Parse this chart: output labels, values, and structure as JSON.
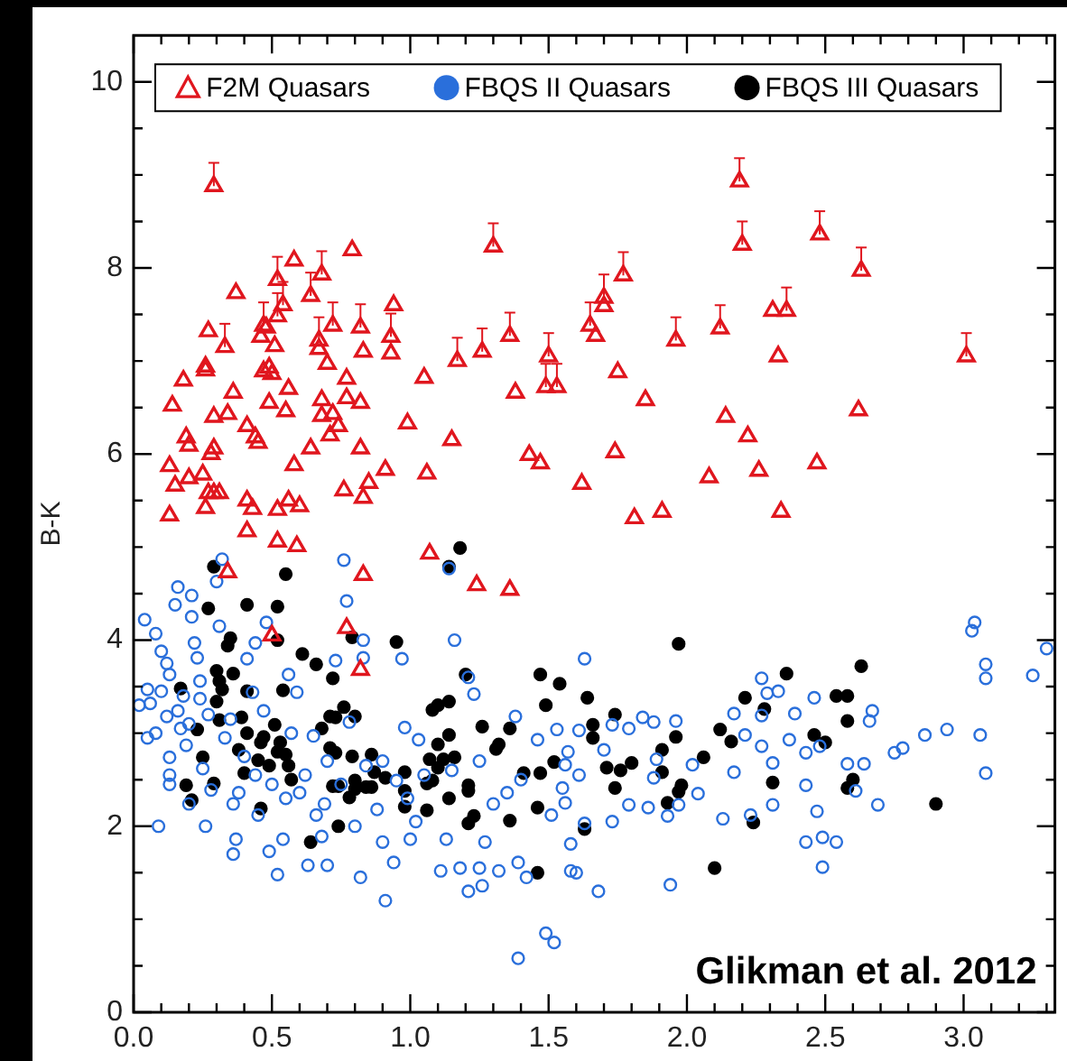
{
  "chart_data": {
    "type": "scatter",
    "ylabel": "B-K",
    "legend": "top",
    "grid": false,
    "annotations": [
      "Glikman et al. 2012"
    ],
    "xlim": [
      0,
      3.33
    ],
    "ylim": [
      0,
      10.5
    ],
    "xticks": [
      {
        "value": 0,
        "label": "0.0"
      },
      {
        "value": 0.1,
        "label": null
      },
      {
        "value": 0.2,
        "label": null
      },
      {
        "value": 0.3,
        "label": null
      },
      {
        "value": 0.4,
        "label": null
      },
      {
        "value": 0.5,
        "label": "0.5"
      },
      {
        "value": 0.6,
        "label": null
      },
      {
        "value": 0.7,
        "label": null
      },
      {
        "value": 0.8,
        "label": null
      },
      {
        "value": 0.9,
        "label": null
      },
      {
        "value": 1,
        "label": "1.0"
      },
      {
        "value": 1.1,
        "label": null
      },
      {
        "value": 1.2,
        "label": null
      },
      {
        "value": 1.3,
        "label": null
      },
      {
        "value": 1.4,
        "label": null
      },
      {
        "value": 1.5,
        "label": "1.5"
      },
      {
        "value": 1.6,
        "label": null
      },
      {
        "value": 1.7,
        "label": null
      },
      {
        "value": 1.8,
        "label": null
      },
      {
        "value": 1.9,
        "label": null
      },
      {
        "value": 2,
        "label": "2.0"
      },
      {
        "value": 2.1,
        "label": null
      },
      {
        "value": 2.2,
        "label": null
      },
      {
        "value": 2.3,
        "label": null
      },
      {
        "value": 2.4,
        "label": null
      },
      {
        "value": 2.5,
        "label": "2.5"
      },
      {
        "value": 2.6,
        "label": null
      },
      {
        "value": 2.7,
        "label": null
      },
      {
        "value": 2.8,
        "label": null
      },
      {
        "value": 2.9,
        "label": null
      },
      {
        "value": 3,
        "label": "3.0"
      },
      {
        "value": 3.1,
        "label": null
      },
      {
        "value": 3.2,
        "label": null
      },
      {
        "value": 3.3,
        "label": null
      }
    ],
    "yticks": [
      0,
      {
        "value": 0.5,
        "label": null
      },
      {
        "value": 1,
        "label": null
      },
      {
        "value": 1.5,
        "label": null
      },
      2,
      {
        "value": 2.5,
        "label": null
      },
      {
        "value": 3,
        "label": null
      },
      {
        "value": 3.5,
        "label": null
      },
      4,
      {
        "value": 4.5,
        "label": null
      },
      {
        "value": 5,
        "label": null
      },
      {
        "value": 5.5,
        "label": null
      },
      6,
      {
        "value": 6.5,
        "label": null
      },
      {
        "value": 7,
        "label": null
      },
      {
        "value": 7.5,
        "label": null
      },
      8,
      {
        "value": 8.5,
        "label": null
      },
      {
        "value": 9,
        "label": null
      },
      {
        "value": 9.5,
        "label": null
      },
      10
    ],
    "series": [
      {
        "name": "F2M Quasars",
        "color": "#e0161e",
        "marker": "triangle",
        "x": [
          0.29,
          1.3,
          0.79,
          0.58,
          0.52,
          0.68,
          0.64,
          0.37,
          0.54,
          0.94,
          0.52,
          0.47,
          0.48,
          0.72,
          0.82,
          0.93,
          0.27,
          0.33,
          0.46,
          0.51,
          0.67,
          0.67,
          0.83,
          0.93,
          1.17,
          1.26,
          1.36,
          1.5,
          1.49,
          1.53,
          0.7,
          0.26,
          0.26,
          0.18,
          0.47,
          0.5,
          0.49,
          0.36,
          0.56,
          0.77,
          1.05,
          1.38,
          0.14,
          0.29,
          0.34,
          0.41,
          0.49,
          0.55,
          0.68,
          0.68,
          0.77,
          0.82,
          0.72,
          0.74,
          0.71,
          0.99,
          1.15,
          0.19,
          0.2,
          0.44,
          0.45,
          0.29,
          0.28,
          0.64,
          0.82,
          1.43,
          0.58,
          0.91,
          1.06,
          0.15,
          0.2,
          0.25,
          0.27,
          0.29,
          0.31,
          0.41,
          0.43,
          0.52,
          0.56,
          0.6,
          0.76,
          0.85,
          0.83,
          0.13,
          0.26,
          0.41,
          0.52,
          0.59,
          1.07,
          0.34,
          0.83,
          0.13,
          1.24,
          1.36,
          0.5,
          0.77,
          0.82,
          2.19,
          2.2,
          2.48,
          2.63,
          1.77,
          1.7,
          1.7,
          1.65,
          1.67,
          1.96,
          2.12,
          2.31,
          2.36,
          3.01,
          2.33,
          1.75,
          1.85,
          2.14,
          2.62,
          2.22,
          1.74,
          1.62,
          1.47,
          2.08,
          2.26,
          2.47,
          1.81,
          1.91,
          2.34
        ],
        "values": [
          8.88,
          8.23,
          8.19,
          8.08,
          7.87,
          7.93,
          7.7,
          7.73,
          7.6,
          7.6,
          7.48,
          7.38,
          7.36,
          7.38,
          7.36,
          7.26,
          7.32,
          7.15,
          7.26,
          7.16,
          7.22,
          7.13,
          7.1,
          7.08,
          7.0,
          7.1,
          7.27,
          7.05,
          6.72,
          6.72,
          6.97,
          6.94,
          6.9,
          6.79,
          6.89,
          6.86,
          6.93,
          6.66,
          6.7,
          6.81,
          6.82,
          6.66,
          6.52,
          6.4,
          6.43,
          6.3,
          6.55,
          6.46,
          6.58,
          6.41,
          6.6,
          6.55,
          6.43,
          6.3,
          6.2,
          6.33,
          6.15,
          6.18,
          6.09,
          6.18,
          6.12,
          6.06,
          6.0,
          6.06,
          6.06,
          5.99,
          5.88,
          5.83,
          5.79,
          5.66,
          5.74,
          5.78,
          5.58,
          5.58,
          5.58,
          5.5,
          5.41,
          5.4,
          5.5,
          5.44,
          5.61,
          5.69,
          5.53,
          5.34,
          5.42,
          5.17,
          5.06,
          5.01,
          4.93,
          4.73,
          4.7,
          5.87,
          4.59,
          4.54,
          4.05,
          4.13,
          3.68,
          8.93,
          8.25,
          8.36,
          7.97,
          7.92,
          7.68,
          7.59,
          7.38,
          7.27,
          7.22,
          7.35,
          7.54,
          7.54,
          7.05,
          7.05,
          6.88,
          6.58,
          6.4,
          6.47,
          6.19,
          6.02,
          5.68,
          5.9,
          5.75,
          5.82,
          5.9,
          5.31,
          5.38,
          5.38
        ],
        "errors": [
          [
            8.88,
            9.13
          ],
          [
            8.23,
            8.48
          ],
          null,
          null,
          [
            7.87,
            8.12
          ],
          [
            7.93,
            8.18
          ],
          [
            7.7,
            7.95
          ],
          null,
          [
            7.6,
            7.85
          ],
          null,
          [
            7.48,
            7.73
          ],
          [
            7.38,
            7.63
          ],
          null,
          [
            7.38,
            7.63
          ],
          [
            7.36,
            7.61
          ],
          [
            7.26,
            7.51
          ],
          null,
          [
            7.15,
            7.4
          ],
          null,
          null,
          [
            7.22,
            7.47
          ],
          null,
          null,
          null,
          [
            7.0,
            7.25
          ],
          [
            7.1,
            7.35
          ],
          [
            7.27,
            7.52
          ],
          [
            7.05,
            7.3
          ],
          [
            6.72,
            6.97
          ],
          [
            6.72,
            6.97
          ],
          null,
          null,
          null,
          null,
          null,
          null,
          null,
          null,
          null,
          null,
          null,
          null,
          null,
          null,
          null,
          null,
          null,
          null,
          null,
          null,
          null,
          null,
          null,
          null,
          null,
          null,
          null,
          null,
          null,
          null,
          null,
          null,
          null,
          null,
          null,
          null,
          null,
          null,
          null,
          null,
          null,
          null,
          null,
          null,
          null,
          null,
          null,
          null,
          null,
          null,
          null,
          null,
          null,
          null,
          null,
          null,
          null,
          null,
          null,
          null,
          null,
          null,
          null,
          null,
          null,
          null,
          null,
          [
            8.93,
            9.18
          ],
          [
            8.25,
            8.5
          ],
          [
            8.36,
            8.61
          ],
          [
            7.97,
            8.22
          ],
          [
            7.92,
            8.17
          ],
          [
            7.68,
            7.93
          ],
          null,
          [
            7.38,
            7.63
          ],
          null,
          [
            7.22,
            7.47
          ],
          [
            7.35,
            7.6
          ],
          null,
          [
            7.54,
            7.79
          ],
          [
            7.05,
            7.3
          ],
          null,
          null,
          null,
          null,
          null,
          null,
          null,
          null,
          null,
          null,
          null,
          null,
          null,
          null,
          null
        ]
      },
      {
        "name": "FBQS II Quasars",
        "color": "#2a6fdb",
        "marker": "circle",
        "x": [
          0.04,
          0.09,
          0.08,
          0.05,
          0.06,
          0.08,
          0.1,
          0.12,
          0.13,
          0.12,
          0.13,
          0.13,
          0.13,
          0.16,
          0.15,
          0.16,
          0.17,
          0.19,
          0.2,
          0.21,
          0.21,
          0.22,
          0.23,
          0.24,
          0.24,
          0.25,
          0.26,
          0.28,
          0.3,
          0.31,
          0.32,
          0.36,
          0.37,
          0.36,
          0.38,
          0.41,
          0.44,
          0.43,
          0.47,
          0.45,
          0.48,
          0.52,
          0.49,
          0.54,
          0.56,
          0.57,
          0.59,
          0.6,
          0.63,
          0.65,
          0.66,
          0.68,
          0.69,
          0.7,
          0.73,
          0.76,
          0.77,
          0.78,
          0.8,
          0.82,
          0.83,
          0.83,
          0.84,
          0.88,
          0.9,
          0.91,
          0.94,
          0.95,
          0.97,
          0.98,
          0.99,
          1.0,
          1.02,
          1.03,
          1.11,
          1.13,
          1.14,
          1.16,
          1.18,
          1.21,
          1.21,
          1.23,
          1.26,
          1.25,
          1.27,
          1.3,
          1.32,
          1.35,
          1.38,
          1.39,
          1.42,
          1.46,
          1.39,
          1.49,
          1.52,
          1.51,
          1.57,
          1.58,
          1.63,
          1.53,
          1.61,
          1.56,
          1.61,
          1.55,
          1.56,
          1.63,
          1.58,
          1.6,
          1.68,
          1.7,
          1.73,
          1.79,
          1.84,
          1.88,
          1.96,
          1.89,
          1.88,
          1.79,
          1.86,
          1.73,
          1.93,
          1.94,
          2.02,
          2.04,
          1.97,
          2.13,
          2.17,
          2.17,
          2.21,
          2.27,
          2.29,
          2.33,
          2.27,
          2.27,
          2.31,
          2.31,
          2.23,
          2.37,
          2.39,
          2.43,
          2.46,
          2.48,
          2.43,
          2.47,
          2.43,
          2.49,
          2.54,
          2.49,
          2.58,
          2.61,
          2.64,
          2.67,
          2.66,
          2.69,
          2.75,
          2.78,
          2.86,
          2.94,
          3.06,
          3.08,
          3.03,
          3.04,
          3.08,
          3.08,
          3.25,
          3.3,
          0.02,
          0.05,
          0.1,
          0.18,
          0.2,
          0.27,
          0.33,
          0.35,
          0.4,
          0.44,
          0.5,
          0.55,
          0.62,
          0.7,
          0.75,
          0.9,
          1.05,
          1.15,
          1.25,
          1.4
        ],
        "values": [
          4.22,
          2.0,
          4.07,
          3.47,
          3.32,
          3.0,
          3.88,
          3.75,
          3.63,
          3.18,
          2.74,
          2.55,
          2.45,
          4.57,
          4.38,
          3.24,
          3.05,
          2.87,
          2.24,
          4.48,
          4.25,
          3.97,
          3.81,
          3.56,
          3.37,
          2.62,
          2.0,
          2.39,
          4.63,
          4.15,
          4.87,
          1.7,
          1.86,
          2.24,
          2.36,
          3.8,
          3.97,
          3.44,
          3.24,
          2.12,
          4.19,
          1.48,
          1.73,
          1.86,
          3.63,
          3.0,
          3.44,
          2.36,
          1.58,
          2.97,
          2.12,
          1.89,
          2.24,
          1.58,
          3.78,
          4.86,
          4.42,
          3.12,
          2.0,
          1.45,
          3.81,
          4.0,
          2.65,
          2.18,
          1.83,
          1.2,
          1.61,
          2.49,
          3.8,
          3.06,
          2.3,
          1.86,
          2.05,
          2.93,
          1.52,
          1.86,
          4.77,
          4.0,
          1.55,
          3.6,
          1.3,
          3.42,
          1.36,
          1.55,
          1.83,
          2.24,
          1.52,
          2.36,
          3.18,
          1.61,
          1.45,
          2.93,
          0.58,
          0.85,
          0.75,
          2.12,
          2.8,
          1.52,
          3.8,
          3.04,
          3.03,
          2.66,
          2.55,
          2.41,
          2.25,
          2.03,
          1.81,
          1.5,
          1.3,
          2.82,
          3.09,
          3.05,
          3.17,
          3.12,
          3.13,
          2.72,
          2.52,
          2.23,
          2.2,
          2.05,
          2.11,
          1.37,
          2.66,
          2.35,
          2.23,
          2.08,
          2.58,
          3.21,
          2.98,
          3.59,
          3.43,
          3.45,
          3.19,
          2.86,
          2.68,
          2.23,
          2.12,
          2.93,
          3.21,
          2.79,
          3.38,
          2.86,
          2.44,
          2.16,
          1.83,
          1.88,
          1.83,
          1.56,
          2.67,
          2.38,
          2.67,
          3.24,
          3.13,
          2.23,
          2.79,
          2.84,
          2.98,
          3.04,
          2.98,
          2.57,
          4.1,
          4.19,
          3.74,
          3.59,
          3.62,
          3.91,
          3.3,
          2.95,
          3.45,
          3.4,
          3.1,
          3.2,
          2.95,
          3.15,
          2.75,
          2.55,
          2.45,
          2.3,
          2.55,
          2.7,
          2.45,
          2.7,
          2.55,
          2.6,
          2.7,
          2.5
        ]
      },
      {
        "name": "FBQS III Quasars",
        "color": "#000000",
        "marker": "circle",
        "x": [
          0.29,
          0.55,
          1.18,
          1.14,
          0.27,
          0.41,
          0.52,
          0.35,
          0.34,
          0.52,
          0.79,
          0.95,
          0.61,
          0.66,
          0.72,
          0.3,
          0.31,
          0.36,
          0.17,
          0.32,
          0.41,
          0.54,
          0.3,
          0.23,
          0.31,
          0.39,
          0.41,
          0.47,
          0.51,
          0.46,
          0.53,
          0.55,
          0.52,
          0.38,
          0.25,
          0.45,
          0.49,
          0.56,
          0.57,
          0.4,
          0.68,
          0.71,
          0.73,
          0.76,
          0.8,
          0.71,
          0.73,
          0.79,
          0.86,
          0.87,
          0.91,
          0.98,
          0.8,
          0.8,
          0.84,
          0.86,
          0.72,
          0.74,
          0.78,
          0.98,
          0.98,
          1.06,
          0.74,
          0.64,
          0.46,
          0.21,
          0.19,
          0.29,
          1.07,
          1.1,
          1.12,
          1.08,
          1.1,
          1.14,
          1.1,
          1.14,
          1.16,
          1.06,
          1.08,
          1.14,
          1.21,
          1.21,
          1.21,
          1.23,
          1.2,
          1.26,
          1.31,
          1.32,
          1.36,
          1.36,
          1.41,
          1.47,
          1.47,
          1.54,
          1.49,
          1.52,
          1.46,
          1.46,
          1.97,
          1.64,
          1.66,
          1.66,
          1.74,
          1.71,
          1.76,
          1.8,
          1.74,
          1.63,
          1.96,
          1.91,
          1.91,
          1.98,
          1.97,
          1.93,
          2.06,
          2.12,
          2.16,
          2.21,
          2.28,
          2.36,
          2.24,
          2.31,
          2.1,
          2.46,
          2.5,
          2.54,
          2.58,
          2.58,
          2.63,
          2.6,
          2.58,
          2.9
        ],
        "values": [
          4.79,
          4.71,
          4.99,
          4.79,
          4.34,
          4.38,
          4.36,
          4.02,
          3.94,
          4.0,
          4.03,
          3.98,
          3.85,
          3.74,
          3.59,
          3.67,
          3.56,
          3.64,
          3.48,
          3.47,
          3.45,
          3.46,
          3.34,
          3.04,
          3.14,
          3.17,
          3.0,
          2.96,
          3.09,
          2.9,
          2.9,
          2.77,
          2.8,
          2.82,
          2.74,
          2.71,
          2.65,
          2.65,
          2.5,
          2.57,
          3.05,
          3.18,
          3.17,
          3.28,
          3.18,
          2.84,
          2.79,
          2.75,
          2.77,
          2.58,
          2.52,
          2.58,
          2.49,
          2.4,
          2.42,
          2.42,
          2.43,
          2.43,
          2.31,
          2.38,
          2.21,
          2.17,
          2.0,
          1.83,
          2.19,
          2.28,
          2.44,
          2.46,
          2.72,
          2.63,
          2.72,
          3.25,
          3.3,
          3.34,
          2.88,
          2.98,
          2.74,
          2.46,
          2.49,
          2.3,
          2.44,
          2.38,
          2.03,
          2.11,
          3.63,
          3.07,
          2.83,
          2.88,
          3.05,
          2.06,
          2.57,
          2.57,
          3.63,
          3.53,
          3.3,
          2.69,
          2.2,
          1.5,
          3.96,
          3.38,
          3.09,
          2.95,
          3.2,
          2.63,
          2.6,
          2.68,
          2.41,
          1.97,
          2.96,
          2.58,
          2.82,
          2.44,
          2.37,
          2.25,
          2.74,
          3.04,
          2.91,
          3.38,
          3.26,
          3.64,
          2.04,
          2.47,
          1.55,
          2.98,
          2.9,
          3.4,
          3.4,
          3.13,
          3.72,
          2.5,
          2.41,
          2.24
        ]
      }
    ]
  }
}
